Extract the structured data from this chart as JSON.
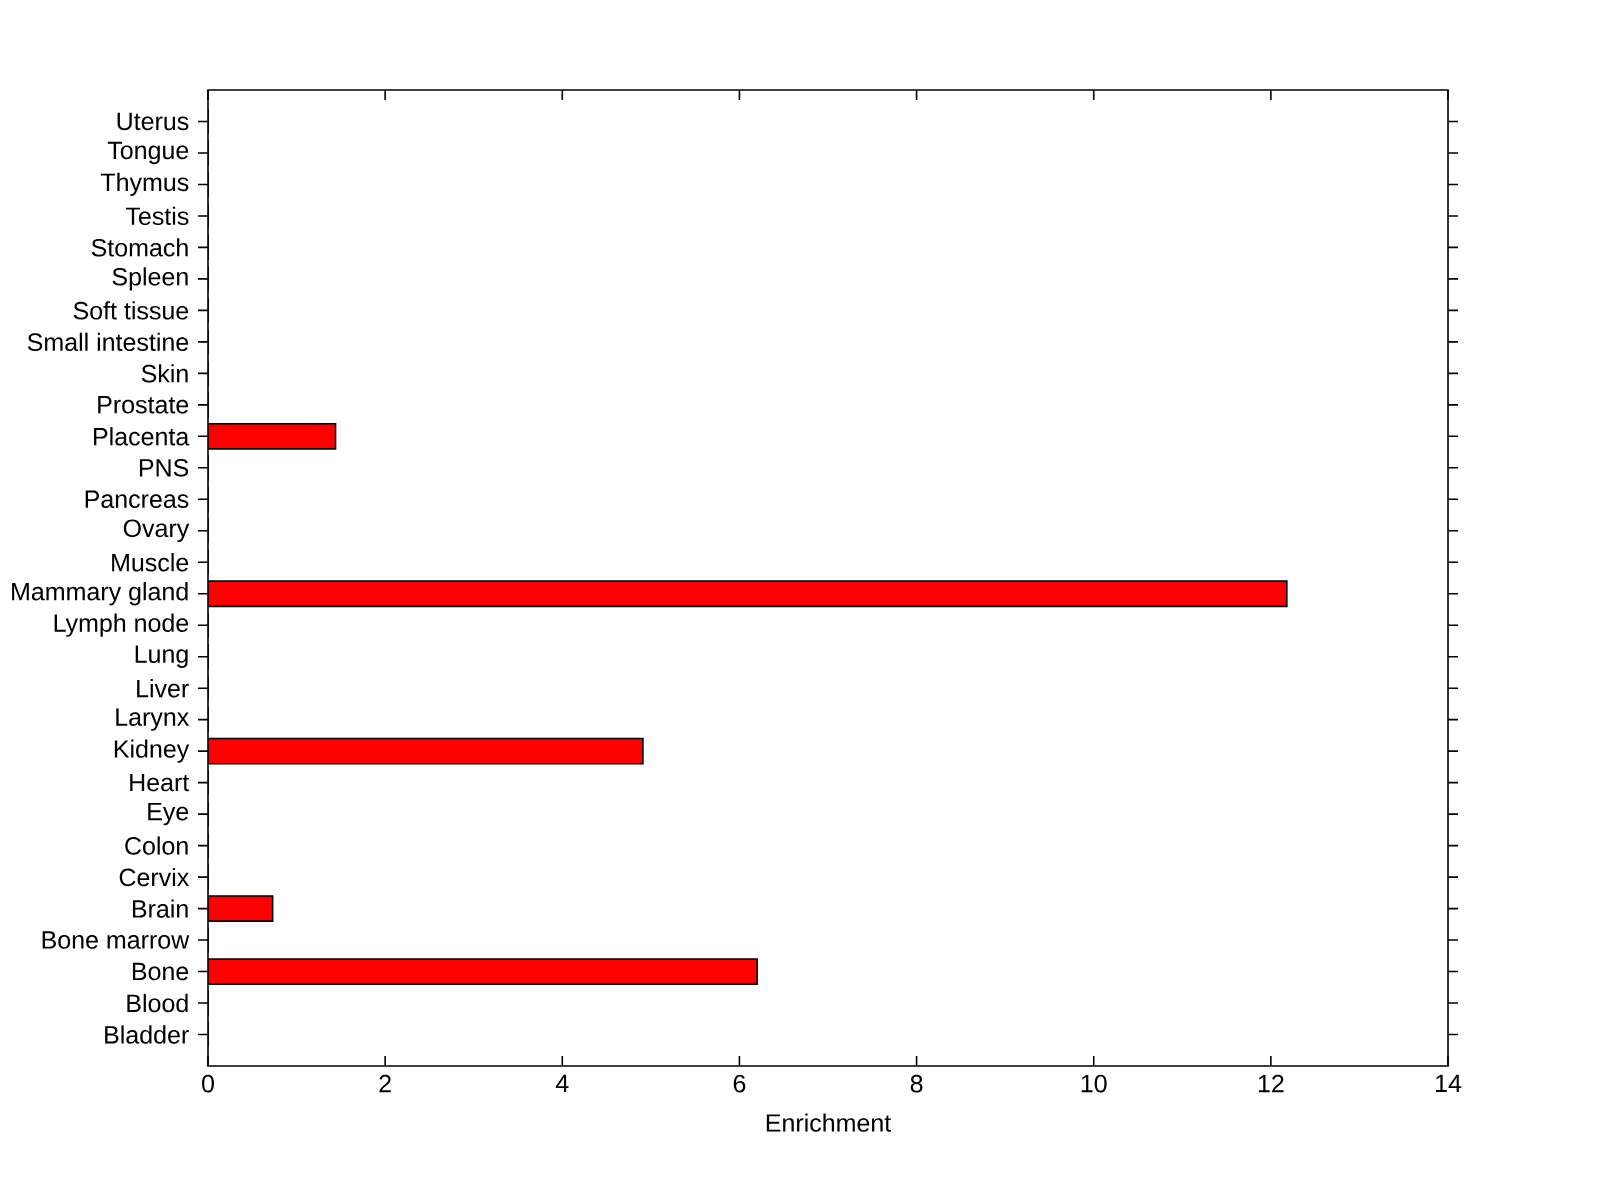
{
  "chart_data": {
    "type": "bar",
    "orientation": "horizontal",
    "categories": [
      "Uterus",
      "Tongue",
      "Thymus",
      "Testis",
      "Stomach",
      "Spleen",
      "Soft tissue",
      "Small intestine",
      "Skin",
      "Prostate",
      "Placenta",
      "PNS",
      "Pancreas",
      "Ovary",
      "Muscle",
      "Mammary gland",
      "Lymph node",
      "Lung",
      "Liver",
      "Larynx",
      "Kidney",
      "Heart",
      "Eye",
      "Colon",
      "Cervix",
      "Brain",
      "Bone marrow",
      "Bone",
      "Blood",
      "Bladder"
    ],
    "values": [
      0,
      0,
      0,
      0,
      0,
      0,
      0,
      0,
      0,
      0,
      1.44,
      0,
      0,
      0,
      0,
      12.18,
      0,
      0,
      0,
      0,
      4.91,
      0,
      0,
      0,
      0,
      0.73,
      0,
      6.2,
      0,
      0
    ],
    "color": "#ff0000",
    "xlabel": "Enrichment",
    "xlim": [
      0,
      14
    ],
    "xticks": [
      0,
      2,
      4,
      6,
      8,
      10,
      12,
      14
    ],
    "grid": false
  }
}
